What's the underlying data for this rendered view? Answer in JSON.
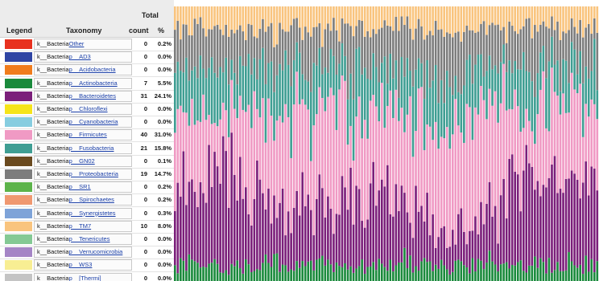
{
  "legend": {
    "headers": {
      "total": "Total",
      "legend": "Legend",
      "taxonomy": "Taxonomy",
      "count": "count",
      "percent": "%"
    },
    "rows": [
      {
        "prefix": "k__Bacteria",
        "name": "Other",
        "count": "0",
        "percent": "0.2%",
        "color": "#e8311f"
      },
      {
        "prefix": "k__Bacteria",
        "name": "p__AD3",
        "count": "0",
        "percent": "0.0%",
        "color": "#2e44a3"
      },
      {
        "prefix": "k__Bacteria",
        "name": "p__Acidobacteria",
        "count": "0",
        "percent": "0.0%",
        "color": "#f07c1c"
      },
      {
        "prefix": "k__Bacteria",
        "name": "p__Actinobacteria",
        "count": "7",
        "percent": "5.5%",
        "color": "#1a8a3c"
      },
      {
        "prefix": "k__Bacteria",
        "name": "p__Bacteroidetes",
        "count": "31",
        "percent": "24.1%",
        "color": "#7b1f7a"
      },
      {
        "prefix": "k__Bacteria",
        "name": "p__Chloroflexi",
        "count": "0",
        "percent": "0.0%",
        "color": "#f5e41a"
      },
      {
        "prefix": "k__Bacteria",
        "name": "p__Cyanobacteria",
        "count": "0",
        "percent": "0.0%",
        "color": "#86cde0"
      },
      {
        "prefix": "k__Bacteria",
        "name": "p__Firmicutes",
        "count": "40",
        "percent": "31.0%",
        "color": "#f09ac4"
      },
      {
        "prefix": "k__Bacteria",
        "name": "p__Fusobacteria",
        "count": "21",
        "percent": "15.8%",
        "color": "#3f9e93"
      },
      {
        "prefix": "k__Bacteria",
        "name": "p__GN02",
        "count": "0",
        "percent": "0.1%",
        "color": "#6a4a1f"
      },
      {
        "prefix": "k__Bacteria",
        "name": "p__Proteobacteria",
        "count": "19",
        "percent": "14.7%",
        "color": "#7d7d7d"
      },
      {
        "prefix": "k__Bacteria",
        "name": "p__SR1",
        "count": "0",
        "percent": "0.2%",
        "color": "#5cb34a"
      },
      {
        "prefix": "k__Bacteria",
        "name": "p__Spirochaetes",
        "count": "0",
        "percent": "0.2%",
        "color": "#f09870"
      },
      {
        "prefix": "k__Bacteria",
        "name": "p__Synergistetes",
        "count": "0",
        "percent": "0.3%",
        "color": "#7ea3d8"
      },
      {
        "prefix": "k__Bacteria",
        "name": "p__TM7",
        "count": "10",
        "percent": "8.0%",
        "color": "#f9c47e"
      },
      {
        "prefix": "k__Bacteria",
        "name": "p__Tenericutes",
        "count": "0",
        "percent": "0.0%",
        "color": "#84c994"
      },
      {
        "prefix": "k__Bacteria",
        "name": "p__Verrucomicrobia",
        "count": "0",
        "percent": "0.0%",
        "color": "#a585c6"
      },
      {
        "prefix": "k__Bacteria",
        "name": "p__WS3",
        "count": "0",
        "percent": "0.0%",
        "color": "#f8ee93"
      },
      {
        "prefix": "k__Bacteria",
        "name": "p__[Thermi]",
        "count": "0",
        "percent": "0.0%",
        "color": "#c4c4c4"
      }
    ]
  },
  "chart_data": {
    "type": "bar",
    "stacked": true,
    "normalized": true,
    "bar_count": 150,
    "ylim": [
      0,
      100
    ],
    "stack_order_bottom_to_top": [
      "p__Actinobacteria",
      "p__Bacteroidetes",
      "p__Firmicutes",
      "p__Fusobacteria",
      "p__Proteobacteria",
      "p__TM7"
    ],
    "series": [
      {
        "name": "p__Actinobacteria",
        "color": "#1a8a3c",
        "mean_percent": 5.5
      },
      {
        "name": "p__Bacteroidetes",
        "color": "#7b1f7a",
        "mean_percent": 24.1
      },
      {
        "name": "p__Firmicutes",
        "color": "#f09ac4",
        "mean_percent": 31.0
      },
      {
        "name": "p__Fusobacteria",
        "color": "#3f9e93",
        "mean_percent": 15.8
      },
      {
        "name": "p__Proteobacteria",
        "color": "#7d7d7d",
        "mean_percent": 14.7
      },
      {
        "name": "p__TM7",
        "color": "#f9c47e",
        "mean_percent": 8.0
      }
    ],
    "bar_gap_color": "#ffffff",
    "grid": false,
    "legend_position": "left"
  }
}
